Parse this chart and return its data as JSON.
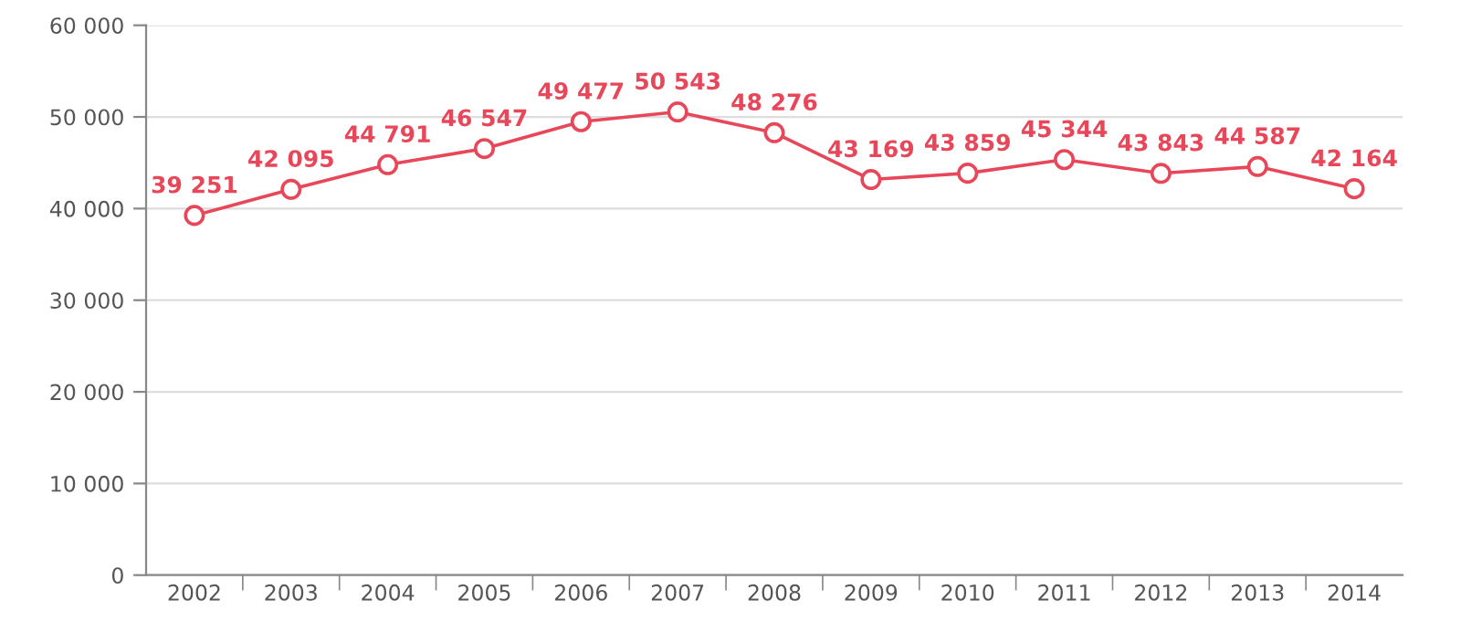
{
  "chart_data": {
    "type": "line",
    "categories": [
      "2002",
      "2003",
      "2004",
      "2005",
      "2006",
      "2007",
      "2008",
      "2009",
      "2010",
      "2011",
      "2012",
      "2013",
      "2014"
    ],
    "series": [
      {
        "color": "#e8475a",
        "values": [
          39251,
          42095,
          44791,
          46547,
          49477,
          50543,
          48276,
          43169,
          43859,
          45344,
          43843,
          44587,
          42164
        ],
        "value_labels": [
          "39 251",
          "42 095",
          "44 791",
          "46 547",
          "49 477",
          "50 543",
          "48 276",
          "43 169",
          "43 859",
          "45 344",
          "43 843",
          "44 587",
          "42 164"
        ]
      }
    ],
    "ylim": [
      0,
      60000
    ],
    "yticks": [
      0,
      {
        "value": 10000,
        "label": "10 000"
      },
      {
        "value": 20000,
        "label": "20 000"
      },
      {
        "value": 30000,
        "label": "30 000"
      },
      {
        "value": 40000,
        "label": "40 000"
      },
      {
        "value": 50000,
        "label": "50 000"
      },
      {
        "value": 60000,
        "label": "60 000"
      }
    ],
    "grid": "y",
    "marker": "circle",
    "line_style": "solid",
    "legend": false
  }
}
